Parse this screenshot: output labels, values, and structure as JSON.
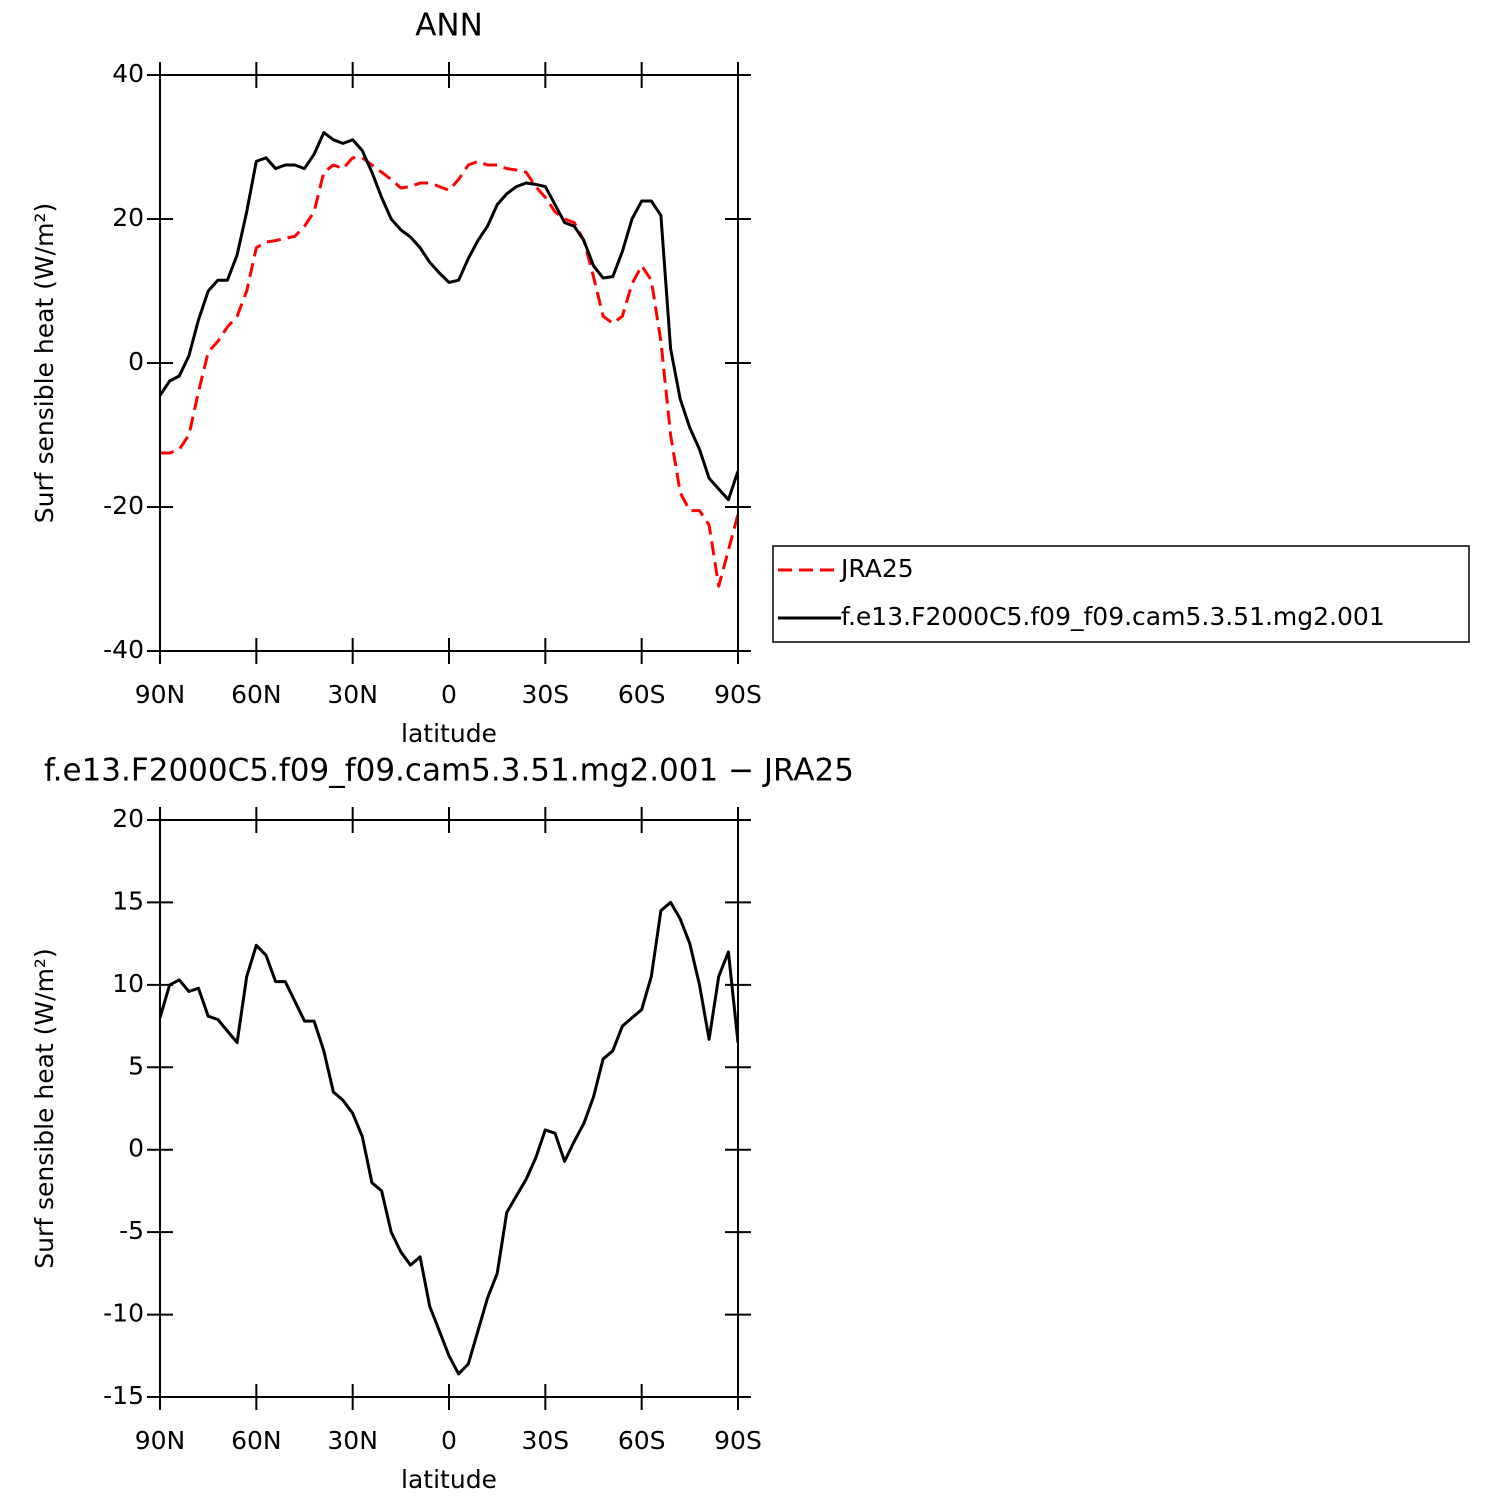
{
  "chart_data": [
    {
      "type": "line",
      "title": "ANN",
      "x_label": "latitude",
      "y_label": "Surf sensible heat (W/m²)",
      "x": [
        90,
        87,
        84,
        81,
        78,
        75,
        72,
        69,
        66,
        63,
        60,
        57,
        54,
        51,
        48,
        45,
        42,
        39,
        36,
        33,
        30,
        27,
        24,
        21,
        18,
        15,
        12,
        9,
        6,
        3,
        0,
        -3,
        -6,
        -9,
        -12,
        -15,
        -18,
        -21,
        -24,
        -27,
        -30,
        -33,
        -36,
        -39,
        -42,
        -45,
        -48,
        -51,
        -54,
        -57,
        -60,
        -63,
        -66,
        -69,
        -72,
        -75,
        -78,
        -81,
        -84,
        -87,
        -90
      ],
      "xlim": [
        90,
        -90
      ],
      "xticks": [
        {
          "value": 90,
          "label": "90N"
        },
        {
          "value": 60,
          "label": "60N"
        },
        {
          "value": 30,
          "label": "30N"
        },
        0,
        {
          "value": -30,
          "label": "30S"
        },
        {
          "value": -60,
          "label": "60S"
        },
        {
          "value": -90,
          "label": "90S"
        }
      ],
      "ylim": [
        -40,
        40
      ],
      "yticks": [
        -40,
        -20,
        0,
        20,
        40
      ],
      "legend": "right",
      "series": [
        {
          "name": "JRA25",
          "color": "#ff0000",
          "dash": "dashed",
          "values": [
            -12.5,
            -12.5,
            -12,
            -10,
            -4,
            1.5,
            3,
            5,
            6.5,
            10,
            16,
            16.8,
            17,
            17.3,
            17.6,
            19,
            21,
            26.5,
            27.5,
            27,
            28.5,
            28.5,
            27.5,
            26.5,
            25.5,
            24.3,
            24.5,
            25,
            25,
            24.5,
            24,
            25.5,
            27.5,
            28,
            27.5,
            27.5,
            27,
            26.8,
            26.5,
            24.5,
            23,
            21,
            20,
            19.5,
            17,
            12,
            6.5,
            5.5,
            6.5,
            11,
            13.5,
            11.5,
            3,
            -10,
            -18,
            -20.5,
            -20.5,
            -22.5,
            -31,
            -26,
            -21
          ]
        },
        {
          "name": "f.e13.F2000C5.f09_f09.cam5.3.51.mg2.001",
          "color": "#000000",
          "dash": "solid",
          "values": [
            -4.5,
            -2.5,
            -1.8,
            1,
            6,
            10,
            11.5,
            11.5,
            15,
            21,
            28,
            28.5,
            27,
            27.5,
            27.5,
            27,
            29,
            32,
            31,
            30.5,
            31,
            29.5,
            26.5,
            23,
            20,
            18.5,
            17.5,
            16,
            14,
            12.5,
            11.2,
            11.5,
            14.5,
            17,
            19,
            22,
            23.5,
            24.5,
            25,
            24.8,
            24.5,
            22,
            19.5,
            19,
            17,
            13.5,
            11.8,
            12,
            15.5,
            20,
            22.5,
            22.5,
            20.5,
            2,
            -5,
            -9,
            -12,
            -16,
            -17.5,
            -19,
            -15
          ]
        }
      ]
    },
    {
      "type": "line",
      "title": "f.e13.F2000C5.f09_f09.cam5.3.51.mg2.001 − JRA25",
      "x_label": "latitude",
      "y_label": "Surf sensible heat (W/m²)",
      "x": [
        90,
        87,
        84,
        81,
        78,
        75,
        72,
        69,
        66,
        63,
        60,
        57,
        54,
        51,
        48,
        45,
        42,
        39,
        36,
        33,
        30,
        27,
        24,
        21,
        18,
        15,
        12,
        9,
        6,
        3,
        0,
        -3,
        -6,
        -9,
        -12,
        -15,
        -18,
        -21,
        -24,
        -27,
        -30,
        -33,
        -36,
        -39,
        -42,
        -45,
        -48,
        -51,
        -54,
        -57,
        -60,
        -63,
        -66,
        -69,
        -72,
        -75,
        -78,
        -81,
        -84,
        -87,
        -90
      ],
      "xlim": [
        90,
        -90
      ],
      "xticks": [
        {
          "value": 90,
          "label": "90N"
        },
        {
          "value": 60,
          "label": "60N"
        },
        {
          "value": 30,
          "label": "30N"
        },
        0,
        {
          "value": -30,
          "label": "30S"
        },
        {
          "value": -60,
          "label": "60S"
        },
        {
          "value": -90,
          "label": "90S"
        }
      ],
      "ylim": [
        -15,
        20
      ],
      "yticks": [
        -15,
        -10,
        -5,
        0,
        5,
        10,
        15,
        20
      ],
      "series": [
        {
          "color": "#000000",
          "dash": "solid",
          "values": [
            8,
            10,
            10.3,
            9.6,
            9.8,
            8.1,
            7.9,
            7.2,
            6.5,
            10.5,
            12.4,
            11.8,
            10.2,
            10.2,
            9,
            7.8,
            7.8,
            6,
            3.5,
            3,
            2.2,
            0.8,
            -2,
            -2.5,
            -5,
            -6.2,
            -7,
            -6.5,
            -9.5,
            -11,
            -12.5,
            -13.6,
            -13,
            -11,
            -9,
            -7.5,
            -3.8,
            -2.8,
            -1.8,
            -0.5,
            1.2,
            1,
            -0.7,
            0.5,
            1.6,
            3.2,
            5.5,
            6,
            7.5,
            8,
            8.5,
            10.5,
            14.5,
            15,
            14,
            12.5,
            10,
            6.7,
            10.5,
            12,
            6.5
          ]
        }
      ]
    }
  ]
}
